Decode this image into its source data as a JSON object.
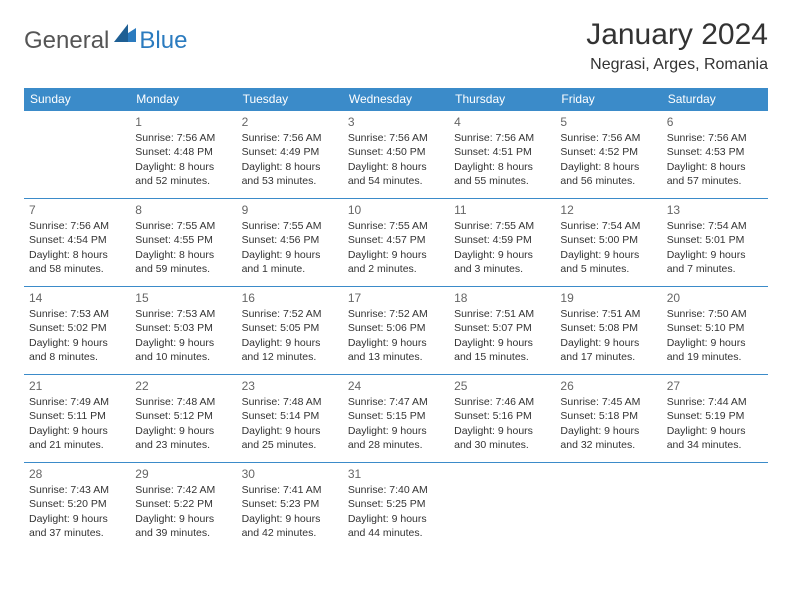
{
  "logo": {
    "text1": "General",
    "text2": "Blue",
    "mark_color": "#2b7bbf",
    "text_color_general": "#555555",
    "text_color_blue": "#2b7bbf"
  },
  "header": {
    "title": "January 2024",
    "location": "Negrasi, Arges, Romania"
  },
  "colors": {
    "header_bg": "#3b8bc9",
    "header_fg": "#ffffff",
    "border": "#3b8bc9",
    "daynum": "#666666",
    "text": "#333333"
  },
  "weekdays": [
    "Sunday",
    "Monday",
    "Tuesday",
    "Wednesday",
    "Thursday",
    "Friday",
    "Saturday"
  ],
  "weeks": [
    [
      null,
      {
        "n": "1",
        "sr": "7:56 AM",
        "ss": "4:48 PM",
        "dl": "8 hours and 52 minutes."
      },
      {
        "n": "2",
        "sr": "7:56 AM",
        "ss": "4:49 PM",
        "dl": "8 hours and 53 minutes."
      },
      {
        "n": "3",
        "sr": "7:56 AM",
        "ss": "4:50 PM",
        "dl": "8 hours and 54 minutes."
      },
      {
        "n": "4",
        "sr": "7:56 AM",
        "ss": "4:51 PM",
        "dl": "8 hours and 55 minutes."
      },
      {
        "n": "5",
        "sr": "7:56 AM",
        "ss": "4:52 PM",
        "dl": "8 hours and 56 minutes."
      },
      {
        "n": "6",
        "sr": "7:56 AM",
        "ss": "4:53 PM",
        "dl": "8 hours and 57 minutes."
      }
    ],
    [
      {
        "n": "7",
        "sr": "7:56 AM",
        "ss": "4:54 PM",
        "dl": "8 hours and 58 minutes."
      },
      {
        "n": "8",
        "sr": "7:55 AM",
        "ss": "4:55 PM",
        "dl": "8 hours and 59 minutes."
      },
      {
        "n": "9",
        "sr": "7:55 AM",
        "ss": "4:56 PM",
        "dl": "9 hours and 1 minute."
      },
      {
        "n": "10",
        "sr": "7:55 AM",
        "ss": "4:57 PM",
        "dl": "9 hours and 2 minutes."
      },
      {
        "n": "11",
        "sr": "7:55 AM",
        "ss": "4:59 PM",
        "dl": "9 hours and 3 minutes."
      },
      {
        "n": "12",
        "sr": "7:54 AM",
        "ss": "5:00 PM",
        "dl": "9 hours and 5 minutes."
      },
      {
        "n": "13",
        "sr": "7:54 AM",
        "ss": "5:01 PM",
        "dl": "9 hours and 7 minutes."
      }
    ],
    [
      {
        "n": "14",
        "sr": "7:53 AM",
        "ss": "5:02 PM",
        "dl": "9 hours and 8 minutes."
      },
      {
        "n": "15",
        "sr": "7:53 AM",
        "ss": "5:03 PM",
        "dl": "9 hours and 10 minutes."
      },
      {
        "n": "16",
        "sr": "7:52 AM",
        "ss": "5:05 PM",
        "dl": "9 hours and 12 minutes."
      },
      {
        "n": "17",
        "sr": "7:52 AM",
        "ss": "5:06 PM",
        "dl": "9 hours and 13 minutes."
      },
      {
        "n": "18",
        "sr": "7:51 AM",
        "ss": "5:07 PM",
        "dl": "9 hours and 15 minutes."
      },
      {
        "n": "19",
        "sr": "7:51 AM",
        "ss": "5:08 PM",
        "dl": "9 hours and 17 minutes."
      },
      {
        "n": "20",
        "sr": "7:50 AM",
        "ss": "5:10 PM",
        "dl": "9 hours and 19 minutes."
      }
    ],
    [
      {
        "n": "21",
        "sr": "7:49 AM",
        "ss": "5:11 PM",
        "dl": "9 hours and 21 minutes."
      },
      {
        "n": "22",
        "sr": "7:48 AM",
        "ss": "5:12 PM",
        "dl": "9 hours and 23 minutes."
      },
      {
        "n": "23",
        "sr": "7:48 AM",
        "ss": "5:14 PM",
        "dl": "9 hours and 25 minutes."
      },
      {
        "n": "24",
        "sr": "7:47 AM",
        "ss": "5:15 PM",
        "dl": "9 hours and 28 minutes."
      },
      {
        "n": "25",
        "sr": "7:46 AM",
        "ss": "5:16 PM",
        "dl": "9 hours and 30 minutes."
      },
      {
        "n": "26",
        "sr": "7:45 AM",
        "ss": "5:18 PM",
        "dl": "9 hours and 32 minutes."
      },
      {
        "n": "27",
        "sr": "7:44 AM",
        "ss": "5:19 PM",
        "dl": "9 hours and 34 minutes."
      }
    ],
    [
      {
        "n": "28",
        "sr": "7:43 AM",
        "ss": "5:20 PM",
        "dl": "9 hours and 37 minutes."
      },
      {
        "n": "29",
        "sr": "7:42 AM",
        "ss": "5:22 PM",
        "dl": "9 hours and 39 minutes."
      },
      {
        "n": "30",
        "sr": "7:41 AM",
        "ss": "5:23 PM",
        "dl": "9 hours and 42 minutes."
      },
      {
        "n": "31",
        "sr": "7:40 AM",
        "ss": "5:25 PM",
        "dl": "9 hours and 44 minutes."
      },
      null,
      null,
      null
    ]
  ],
  "labels": {
    "sunrise": "Sunrise:",
    "sunset": "Sunset:",
    "daylight": "Daylight:"
  }
}
